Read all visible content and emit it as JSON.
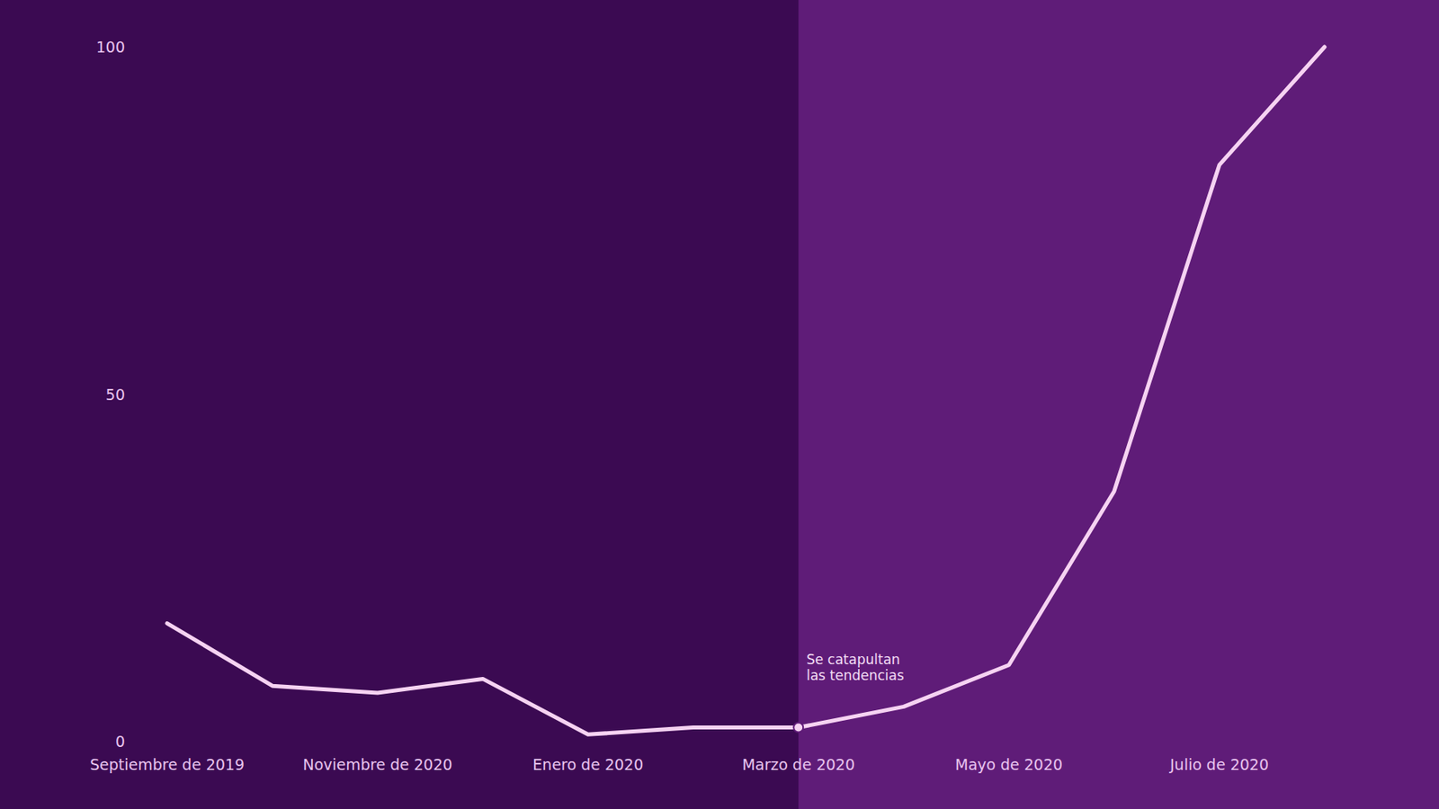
{
  "chart_data": {
    "type": "line",
    "categories": [
      "Septiembre de 2019",
      null,
      "Noviembre de 2020",
      null,
      "Enero de 2020",
      null,
      "Marzo de 2020",
      null,
      "Mayo de 2020",
      null,
      "Julio de 2020",
      null
    ],
    "values": [
      17,
      8,
      7,
      9,
      1,
      2,
      2,
      5,
      11,
      36,
      83,
      100
    ],
    "color": "#f6d3f2",
    "ylim": [
      0,
      100
    ],
    "yticks": [
      0,
      50,
      100
    ],
    "grid": false,
    "annotation": {
      "x": "Marzo de 2020",
      "text": [
        "Se catapultan",
        "las tendencias"
      ]
    }
  }
}
